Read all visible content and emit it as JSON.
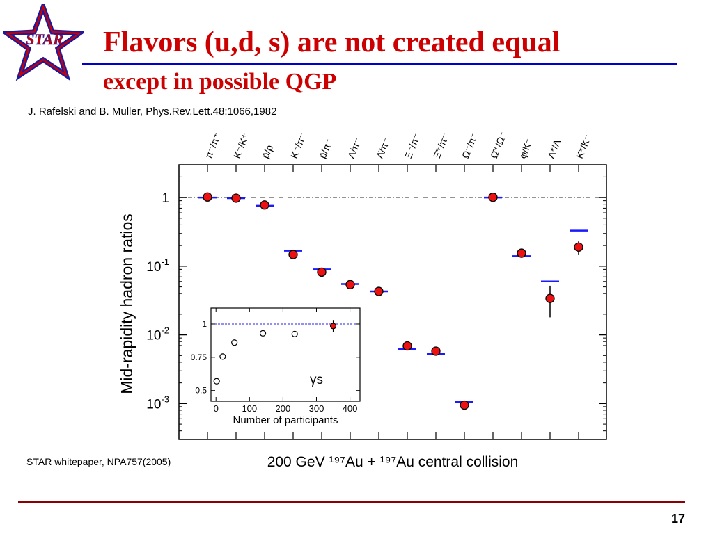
{
  "slide": {
    "title": "Flavors (u,d, s) are not created equal",
    "subtitle": "except in possible QGP",
    "citation": "J. Rafelski and B. Muller, Phys.Rev.Lett.48:1066,1982",
    "reference": "STAR whitepaper, NPA757(2005)",
    "page_number": "17",
    "logo_text": "STAR"
  },
  "colors": {
    "title": "#cc0000",
    "title_rule": "#0000cc",
    "footer_rule": "#8b0000",
    "data_marker": "#ee1111",
    "model_line": "#1a1aff",
    "logo_star": "#cc0000"
  },
  "chart_data": [
    {
      "type": "scatter",
      "ylabel": "Mid-rapidity hadron ratios",
      "xlabel": "200 GeV ¹⁹⁷Au + ¹⁹⁷Au central collision",
      "yscale": "log",
      "ylim": [
        0.0003,
        3
      ],
      "yticks": [
        {
          "value": 1,
          "base": "1",
          "exp": ""
        },
        {
          "value": 0.1,
          "base": "10",
          "exp": "-1"
        },
        {
          "value": 0.01,
          "base": "10",
          "exp": "-2"
        },
        {
          "value": 0.001,
          "base": "10",
          "exp": "-3"
        }
      ],
      "reference_line": 1,
      "categories": [
        {
          "label": "π⁻/π⁺",
          "data": 1.02,
          "model": 1.0,
          "err": null
        },
        {
          "label": "K⁻/K⁺",
          "data": 0.98,
          "model": 0.98,
          "err": null
        },
        {
          "label": "p̄/p",
          "data": 0.78,
          "model": 0.76,
          "err": null
        },
        {
          "label": "K⁻/π⁻",
          "data": 0.148,
          "model": 0.168,
          "err": null
        },
        {
          "label": "p̄/π⁻",
          "data": 0.082,
          "model": 0.09,
          "err": null
        },
        {
          "label": "Λ/π⁻",
          "data": 0.054,
          "model": 0.055,
          "err": null
        },
        {
          "label": "Λ̄/π⁻",
          "data": 0.043,
          "model": 0.043,
          "err": null
        },
        {
          "label": "Ξ⁻/π⁻",
          "data": 0.0069,
          "model": 0.0062,
          "err": null
        },
        {
          "label": "Ξ̄⁺/π⁻",
          "data": 0.0058,
          "model": 0.0053,
          "err": null
        },
        {
          "label": "Ω⁻/π⁻",
          "data": 0.00095,
          "model": 0.00105,
          "err": null
        },
        {
          "label": "Ω̄⁺/Ω⁻",
          "data": 1.01,
          "model": 1.0,
          "err": null
        },
        {
          "label": "φ/K⁻",
          "data": 0.155,
          "model": 0.14,
          "err": null
        },
        {
          "label": "Λ*/Λ",
          "data": 0.034,
          "model": 0.06,
          "err": [
            0.018,
            0.052
          ]
        },
        {
          "label": "K*/K⁻",
          "data": 0.19,
          "model": 0.33,
          "err": [
            0.145,
            0.23
          ]
        }
      ]
    },
    {
      "type": "scatter",
      "xlabel": "Number of participants",
      "annotation": "γs",
      "xlim": [
        -15,
        430
      ],
      "ylim": [
        0.42,
        1.12
      ],
      "xticks": [
        0,
        100,
        200,
        300,
        400
      ],
      "yticks": [
        0.5,
        0.75,
        1
      ],
      "reference_line": 1,
      "series": [
        {
          "marker": "open",
          "points": [
            {
              "x": 2,
              "y": 0.57
            },
            {
              "x": 20,
              "y": 0.755
            },
            {
              "x": 55,
              "y": 0.86
            },
            {
              "x": 140,
              "y": 0.93
            },
            {
              "x": 235,
              "y": 0.925
            }
          ]
        },
        {
          "marker": "filled",
          "points": [
            {
              "x": 350,
              "y": 0.985,
              "err": [
                0.94,
                1.03
              ]
            }
          ]
        }
      ]
    }
  ]
}
